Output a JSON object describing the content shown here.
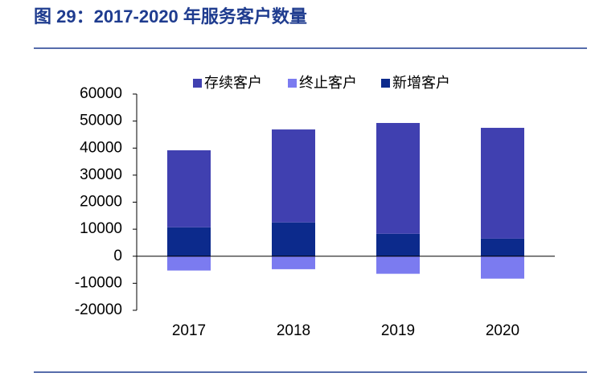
{
  "chart_data": {
    "type": "bar",
    "stacked": true,
    "title": "图 29：2017-2020 年服务客户数量",
    "categories": [
      "2017",
      "2018",
      "2019",
      "2020"
    ],
    "series": [
      {
        "name": "存续客户",
        "color": "#4040b0",
        "values": [
          28500,
          34400,
          41000,
          41000
        ]
      },
      {
        "name": "终止客户",
        "color": "#7b7bf0",
        "values": [
          -5300,
          -4800,
          -6500,
          -8300
        ]
      },
      {
        "name": "新增客户",
        "color": "#0c2a8c",
        "values": [
          10700,
          12500,
          8300,
          6500
        ]
      }
    ],
    "stack_order": [
      2,
      0,
      1
    ],
    "ylim": [
      -20000,
      60000
    ],
    "yticks": [
      -20000,
      -10000,
      0,
      10000,
      20000,
      30000,
      40000,
      50000,
      60000
    ],
    "legend": "top"
  }
}
